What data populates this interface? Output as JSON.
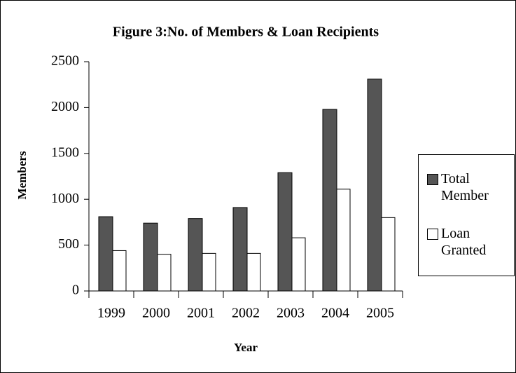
{
  "chart_data": {
    "type": "bar",
    "title": "Figure 3:No. of Members & Loan Recipients",
    "y_label": "Members",
    "x_label": "Year",
    "categories": [
      "1999",
      "2000",
      "2001",
      "2002",
      "2003",
      "2004",
      "2005"
    ],
    "series": [
      {
        "name": "Total Member",
        "color": "#555555",
        "values": [
          810,
          740,
          790,
          910,
          1290,
          1980,
          2310
        ]
      },
      {
        "name": "Loan Granted",
        "color": "#ffffff",
        "values": [
          440,
          400,
          410,
          410,
          580,
          1110,
          800
        ]
      }
    ],
    "ylim": [
      0,
      2500
    ],
    "yticks": [
      0,
      500,
      1000,
      1500,
      2000,
      2500
    ],
    "legend": "right"
  }
}
